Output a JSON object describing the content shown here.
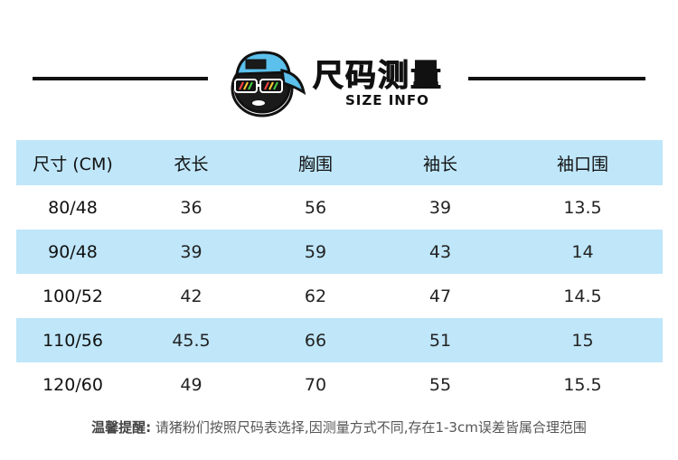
{
  "header": {
    "title": "尺码测量",
    "subtitle": "SIZE INFO",
    "mascot_icon": "cap-sunglasses-mascot-icon"
  },
  "colors": {
    "row_stripe": "#bfe6f9",
    "rule": "#111111",
    "mascot_cap": "#5bc0eb"
  },
  "table": {
    "headers": [
      "尺寸 (CM)",
      "衣长",
      "胸围",
      "袖长",
      "袖口围"
    ],
    "rows": [
      [
        "80/48",
        "36",
        "56",
        "39",
        "13.5"
      ],
      [
        "90/48",
        "39",
        "59",
        "43",
        "14"
      ],
      [
        "100/52",
        "42",
        "62",
        "47",
        "14.5"
      ],
      [
        "110/56",
        "45.5",
        "66",
        "51",
        "15"
      ],
      [
        "120/60",
        "49",
        "70",
        "55",
        "15.5"
      ]
    ]
  },
  "footer": {
    "label": "温馨提醒:",
    "text": " 请猪粉们按照尺码表选择,因测量方式不同,存在1-3cm误差皆属合理范围"
  }
}
